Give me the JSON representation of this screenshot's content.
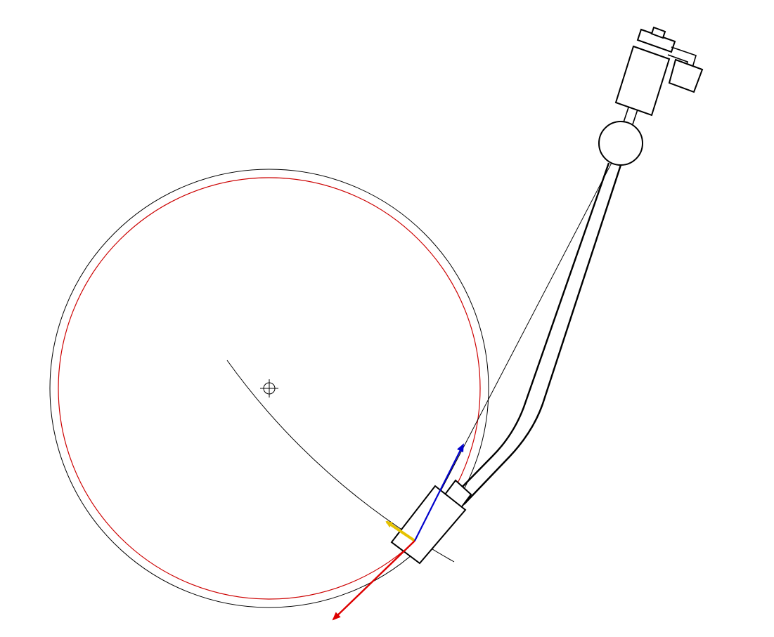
{
  "diagram": {
    "elements": [
      "record-outer-edge",
      "groove-circle",
      "spindle-center-mark",
      "stylus-tracking-arc",
      "tonearm-tube",
      "pivot-bearing",
      "counterweight-assembly",
      "anti-skate-weight",
      "headshell",
      "cartridge",
      "stylus-alignment-line",
      "tangential-force-vector",
      "tonearm-axis-vector",
      "skating-force-vector"
    ],
    "colors": {
      "record": "#000000",
      "groove": "#cc0000",
      "tangential_force": "#dd0000",
      "tonearm_vector": "#0000cc",
      "skating_force": "#e6c200"
    }
  }
}
